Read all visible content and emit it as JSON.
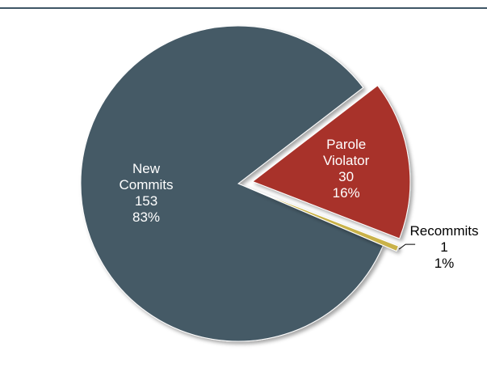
{
  "chart_data": {
    "type": "pie",
    "title": "",
    "exploded": true,
    "slices": [
      {
        "name": "New Commits",
        "name_lines": [
          "New",
          "Commits"
        ],
        "value": 153,
        "percent": "83%",
        "color": "#455a66",
        "label_color": "#ffffff",
        "label_position": "inside"
      },
      {
        "name": "Parole Violator",
        "name_lines": [
          "Parole",
          "Violator"
        ],
        "value": 30,
        "percent": "16%",
        "color": "#a8322a",
        "label_color": "#ffffff",
        "label_position": "inside"
      },
      {
        "name": "Recommits",
        "name_lines": [
          "Recommits"
        ],
        "value": 1,
        "percent": "1%",
        "color": "#c9b24a",
        "label_color": "#000000",
        "label_position": "outside-with-leader"
      }
    ]
  }
}
